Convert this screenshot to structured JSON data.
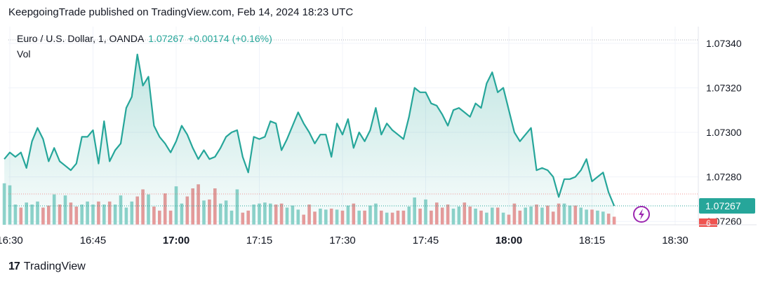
{
  "header": {
    "published_text": "KeepgoingTrade published on TradingView.com, Feb 14, 2024 18:23 UTC"
  },
  "legend": {
    "symbol": "Euro / U.S. Dollar, 1, OANDA",
    "last": "1.07267",
    "change": "+0.00174 (+0.16%)",
    "vol_label": "Vol"
  },
  "price_badge": {
    "value": "1.07267",
    "vol_value": "6"
  },
  "footer": {
    "brand": "TradingView",
    "logo_mark": "17"
  },
  "colors": {
    "line": "#26a69a",
    "fill_top": "#c8ebe6",
    "vol_up": "#8fd3cb",
    "vol_down": "#ec9a9a",
    "badge_green": "#26a69a",
    "badge_red": "#ef5350",
    "marker": "#9c27b0"
  },
  "chart_data": {
    "type": "area",
    "title": "Euro / U.S. Dollar, 1, OANDA",
    "x_start": "16:29",
    "x_interval_minutes": 1,
    "x_ticks": [
      "16:30",
      "16:45",
      "17:00",
      "17:15",
      "17:30",
      "17:45",
      "18:00",
      "18:15",
      "18:30"
    ],
    "x_ticks_bold": [
      "17:00",
      "18:00"
    ],
    "y_ticks": [
      "1.07340",
      "1.07320",
      "1.07300",
      "1.07280",
      "1.07260"
    ],
    "ylim": [
      1.072585,
      1.073475
    ],
    "grid": true,
    "close": [
      1.07288,
      1.07291,
      1.07289,
      1.07291,
      1.07284,
      1.07296,
      1.07302,
      1.07297,
      1.07287,
      1.07293,
      1.07287,
      1.07285,
      1.07283,
      1.07286,
      1.07298,
      1.07298,
      1.07301,
      1.07286,
      1.07305,
      1.07287,
      1.07292,
      1.07295,
      1.07311,
      1.07316,
      1.07335,
      1.07321,
      1.07325,
      1.07303,
      1.07298,
      1.07295,
      1.07291,
      1.07296,
      1.07303,
      1.07299,
      1.07293,
      1.07288,
      1.07292,
      1.07288,
      1.07289,
      1.07293,
      1.07298,
      1.073,
      1.07301,
      1.07289,
      1.07282,
      1.07298,
      1.07297,
      1.07298,
      1.07305,
      1.07304,
      1.07292,
      1.07297,
      1.07303,
      1.07309,
      1.07304,
      1.073,
      1.07295,
      1.07299,
      1.07299,
      1.07289,
      1.07304,
      1.07299,
      1.07306,
      1.07293,
      1.073,
      1.07296,
      1.07301,
      1.07311,
      1.07299,
      1.07304,
      1.07301,
      1.07299,
      1.07297,
      1.07307,
      1.0732,
      1.07318,
      1.07318,
      1.07313,
      1.07312,
      1.07308,
      1.07303,
      1.0731,
      1.07311,
      1.07309,
      1.07307,
      1.07313,
      1.07311,
      1.07322,
      1.07327,
      1.07318,
      1.0732,
      1.0731,
      1.073,
      1.07296,
      1.07299,
      1.07302,
      1.07283,
      1.07284,
      1.07283,
      1.0728,
      1.07271,
      1.07279,
      1.07279,
      1.0728,
      1.07283,
      1.07288,
      1.07278,
      1.0728,
      1.07282,
      1.07273,
      1.07267
    ],
    "volume_direction": [
      "up",
      "up",
      "up",
      "down",
      "up",
      "up",
      "up",
      "down",
      "down",
      "up",
      "down",
      "up",
      "down",
      "down",
      "up",
      "up",
      "up",
      "down",
      "up",
      "down",
      "up",
      "up",
      "up",
      "up",
      "down",
      "down",
      "up",
      "down",
      "down",
      "down",
      "down",
      "up",
      "up",
      "down",
      "down",
      "down",
      "up",
      "down",
      "down",
      "up",
      "up",
      "up",
      "up",
      "down",
      "down",
      "up",
      "up",
      "up",
      "up",
      "down",
      "down",
      "up",
      "up",
      "up",
      "down",
      "down",
      "down",
      "up",
      "up",
      "down",
      "up",
      "down",
      "up",
      "down",
      "up",
      "down",
      "up",
      "up",
      "down",
      "up",
      "down",
      "down",
      "down",
      "up",
      "up",
      "down",
      "up",
      "down",
      "down",
      "down",
      "down",
      "up",
      "up",
      "down",
      "down",
      "up",
      "down",
      "up",
      "up",
      "down",
      "up",
      "down",
      "down",
      "down",
      "up",
      "up",
      "down",
      "up",
      "down",
      "down",
      "down",
      "up",
      "up",
      "down",
      "up",
      "up",
      "down",
      "up",
      "up",
      "down",
      "down"
    ],
    "volume": [
      41,
      39,
      20,
      17,
      22,
      20,
      23,
      17,
      19,
      30,
      20,
      29,
      22,
      18,
      20,
      23,
      20,
      23,
      20,
      23,
      20,
      29,
      17,
      23,
      28,
      35,
      30,
      18,
      14,
      31,
      14,
      38,
      21,
      28,
      36,
      40,
      24,
      25,
      36,
      21,
      24,
      14,
      35,
      12,
      14,
      20,
      21,
      22,
      21,
      20,
      21,
      17,
      19,
      15,
      10,
      20,
      13,
      16,
      15,
      16,
      15,
      14,
      19,
      21,
      14,
      14,
      19,
      21,
      14,
      12,
      12,
      14,
      14,
      18,
      27,
      16,
      25,
      14,
      22,
      17,
      20,
      16,
      18,
      22,
      18,
      16,
      14,
      12,
      17,
      17,
      12,
      10,
      21,
      14,
      17,
      18,
      20,
      17,
      19,
      13,
      21,
      21,
      19,
      19,
      17,
      15,
      15,
      14,
      13,
      11,
      8
    ],
    "volume_unit_scale": "relative"
  }
}
